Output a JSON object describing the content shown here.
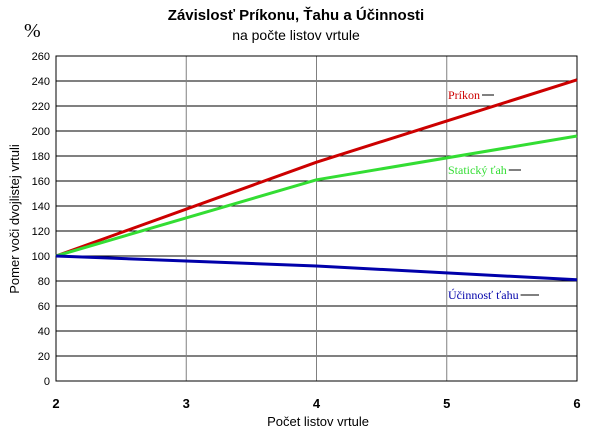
{
  "chart_data": {
    "type": "line",
    "title": "Závislosť Príkonu, Ťahu a Účinnosti",
    "subtitle": "na počte listov vrtule",
    "unit_label": "%",
    "xlabel": "Počet listov vrtule",
    "ylabel": "Pomer voči dvojlistej vrtuli",
    "x": [
      2,
      4,
      6
    ],
    "xlim": [
      2,
      6
    ],
    "ylim": [
      0,
      260
    ],
    "x_ticks": [
      "2",
      "3",
      "4",
      "5",
      "6"
    ],
    "y_ticks": [
      "0",
      "20",
      "40",
      "60",
      "80",
      "100",
      "120",
      "140",
      "160",
      "180",
      "200",
      "220",
      "240",
      "260"
    ],
    "grid": true,
    "series": [
      {
        "name": "Príkon",
        "values": [
          100,
          175,
          241
        ],
        "color": "#cc0000"
      },
      {
        "name": "Statický ťah",
        "values": [
          100,
          161,
          196
        ],
        "color": "#33dd33"
      },
      {
        "name": "Účinnosť ťahu",
        "values": [
          100,
          92,
          81
        ],
        "color": "#0000aa"
      }
    ]
  }
}
